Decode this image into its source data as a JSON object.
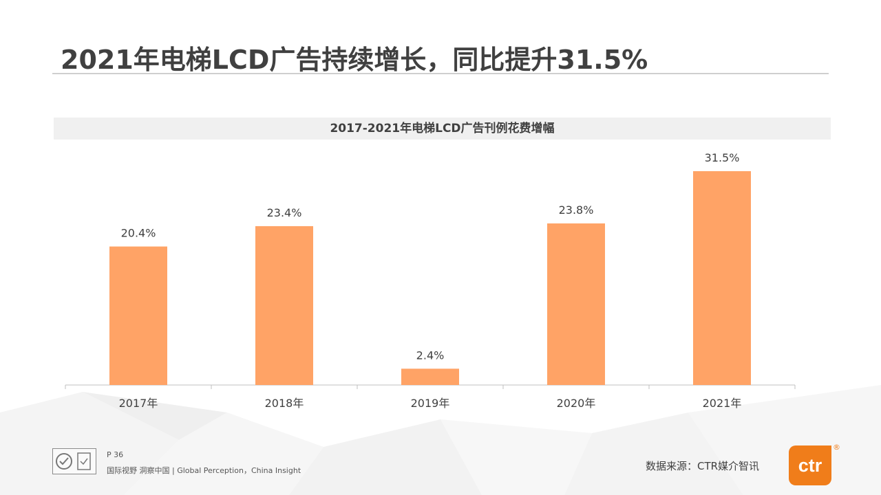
{
  "slide": {
    "title": "2021年电梯LCD广告持续增长，同比提升31.5%",
    "page": "P 36",
    "tagline": "国际视野  洞察中国 |  Global Perception，China Insight",
    "source": "数据来源：CTR媒介智讯",
    "logo_text": "ctr",
    "logo_mark": "®"
  },
  "colors": {
    "bar": "#ffa366",
    "accent": "#f07d1a",
    "title": "#404040"
  },
  "chart_data": {
    "type": "bar",
    "title": "2017-2021年电梯LCD广告刊例花费增幅",
    "categories": [
      "2017年",
      "2018年",
      "2019年",
      "2020年",
      "2021年"
    ],
    "values": [
      20.4,
      23.4,
      2.4,
      23.8,
      31.5
    ],
    "value_labels": [
      "20.4%",
      "23.4%",
      "2.4%",
      "23.8%",
      "31.5%"
    ],
    "ylim": [
      0,
      40
    ],
    "grid": false,
    "xlabel": "",
    "ylabel": ""
  }
}
